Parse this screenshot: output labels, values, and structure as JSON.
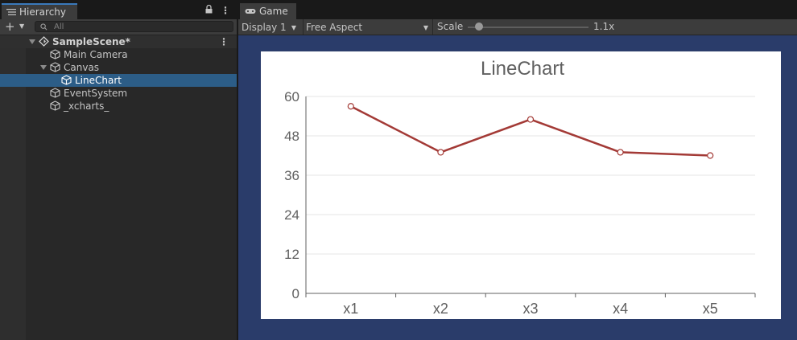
{
  "hierarchy": {
    "tab_label": "Hierarchy",
    "search_placeholder": "All",
    "scene": "SampleScene*",
    "items": [
      {
        "label": "Main Camera"
      },
      {
        "label": "Canvas"
      },
      {
        "label": "LineChart"
      },
      {
        "label": "EventSystem"
      },
      {
        "label": "_xcharts_"
      }
    ]
  },
  "game": {
    "tab_label": "Game",
    "display": "Display 1",
    "aspect": "Free Aspect",
    "scale_label": "Scale",
    "scale_value": "1.1x"
  },
  "colors": {
    "selection": "#2c5d87",
    "viewport_bg": "#2a3c6a",
    "series_line": "#a33a36",
    "accent_tab": "#3a79bb"
  },
  "chart_data": {
    "type": "line",
    "title": "LineChart",
    "categories": [
      "x1",
      "x2",
      "x3",
      "x4",
      "x5"
    ],
    "series": [
      {
        "values": [
          57,
          43,
          53,
          43,
          42
        ]
      }
    ],
    "ylim": [
      0,
      60
    ],
    "yticks": [
      "0",
      "12",
      "24",
      "36",
      "48",
      "60"
    ],
    "grid": true,
    "legend": false
  }
}
